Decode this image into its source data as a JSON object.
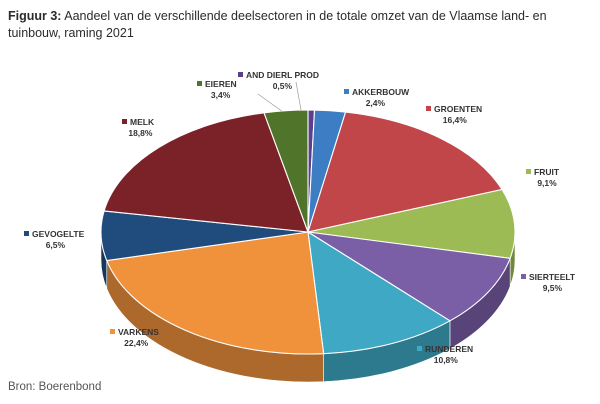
{
  "figure": {
    "label": "Figuur 3:",
    "caption": "Aandeel van de verschillende deelsectoren in de totale omzet van de Vlaamse land- en tuinbouw, raming 2021"
  },
  "source": "Bron: Boerenbond",
  "chart_data": {
    "type": "pie",
    "title": "",
    "three_d": true,
    "start_angle_deg": -90,
    "direction": "clockwise",
    "legend": "none",
    "slices": [
      {
        "label": "AND DIERL PROD",
        "value": 0.5,
        "value_text": "0,5%",
        "color": "#5b3f8c"
      },
      {
        "label": "AKKERBOUW",
        "value": 2.4,
        "value_text": "2,4%",
        "color": "#3c7dc4"
      },
      {
        "label": "GROENTEN",
        "value": 16.4,
        "value_text": "16,4%",
        "color": "#c0464a"
      },
      {
        "label": "FRUIT",
        "value": 9.1,
        "value_text": "9,1%",
        "color": "#9cbb54"
      },
      {
        "label": "SIERTEELT",
        "value": 9.5,
        "value_text": "9,5%",
        "color": "#7a5fa6"
      },
      {
        "label": "RUNDEREN",
        "value": 10.8,
        "value_text": "10,8%",
        "color": "#3fa8c4"
      },
      {
        "label": "VARKENS",
        "value": 22.4,
        "value_text": "22,4%",
        "color": "#f0913c"
      },
      {
        "label": "GEVOGELTE",
        "value": 6.5,
        "value_text": "6,5%",
        "color": "#1f4b7d"
      },
      {
        "label": "MELK",
        "value": 18.8,
        "value_text": "18,8%",
        "color": "#7b2228"
      },
      {
        "label": "EIEREN",
        "value": 3.4,
        "value_text": "3,4%",
        "color": "#50742a"
      }
    ]
  }
}
